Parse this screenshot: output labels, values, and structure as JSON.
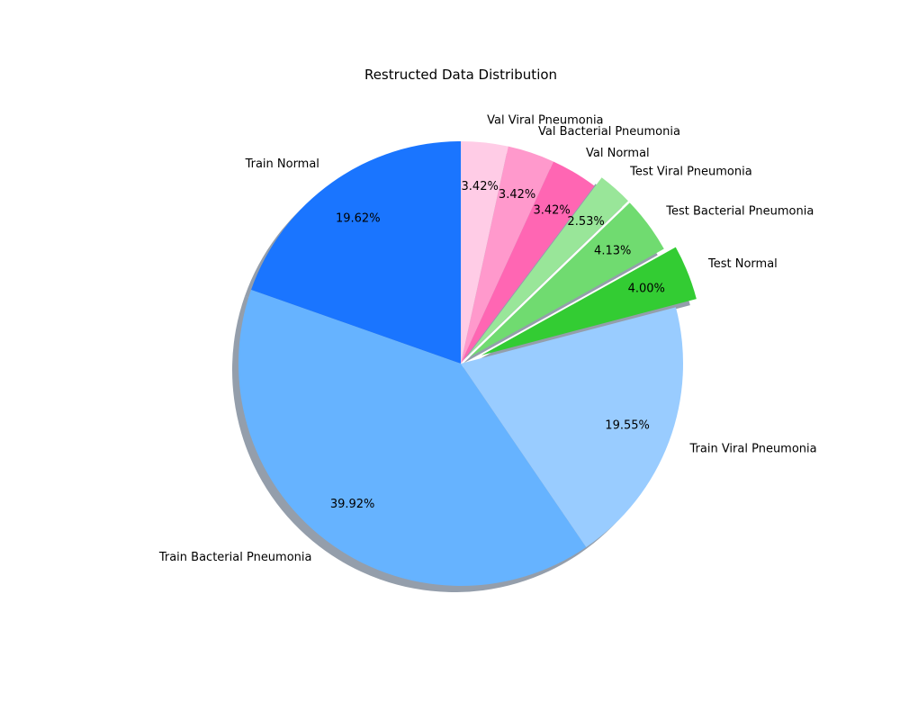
{
  "chart_data": {
    "type": "pie",
    "title": "Restructed Data Distribution",
    "start_angle_deg": 90,
    "direction": "counterclockwise",
    "shadow": true,
    "slices": [
      {
        "label": "Train Normal",
        "value": 19.62,
        "pct_text": "19.62%",
        "color": "#1a75ff",
        "explode": 0
      },
      {
        "label": "Train Bacterial Pneumonia",
        "value": 39.92,
        "pct_text": "39.92%",
        "color": "#66b3ff",
        "explode": 0
      },
      {
        "label": "Train Viral Pneumonia",
        "value": 19.55,
        "pct_text": "19.55%",
        "color": "#99ccff",
        "explode": 0
      },
      {
        "label": "Test Normal",
        "value": 4.0,
        "pct_text": "4.00%",
        "color": "#33cc33",
        "explode": 0.1
      },
      {
        "label": "Test Bacterial Pneumonia",
        "value": 4.13,
        "pct_text": "4.13%",
        "color": "#70db70",
        "explode": 0.05
      },
      {
        "label": "Test Viral Pneumonia",
        "value": 2.53,
        "pct_text": "2.53%",
        "color": "#99e699",
        "explode": 0.05
      },
      {
        "label": "Val Normal",
        "value": 3.42,
        "pct_text": "3.42%",
        "color": "#ff66b3",
        "explode": 0
      },
      {
        "label": "Val Bacterial Pneumonia",
        "value": 3.42,
        "pct_text": "3.42%",
        "color": "#ff99cc",
        "explode": 0
      },
      {
        "label": "Val Viral Pneumonia",
        "value": 3.42,
        "pct_text": "3.42%",
        "color": "#ffcce6",
        "explode": 0
      }
    ]
  }
}
